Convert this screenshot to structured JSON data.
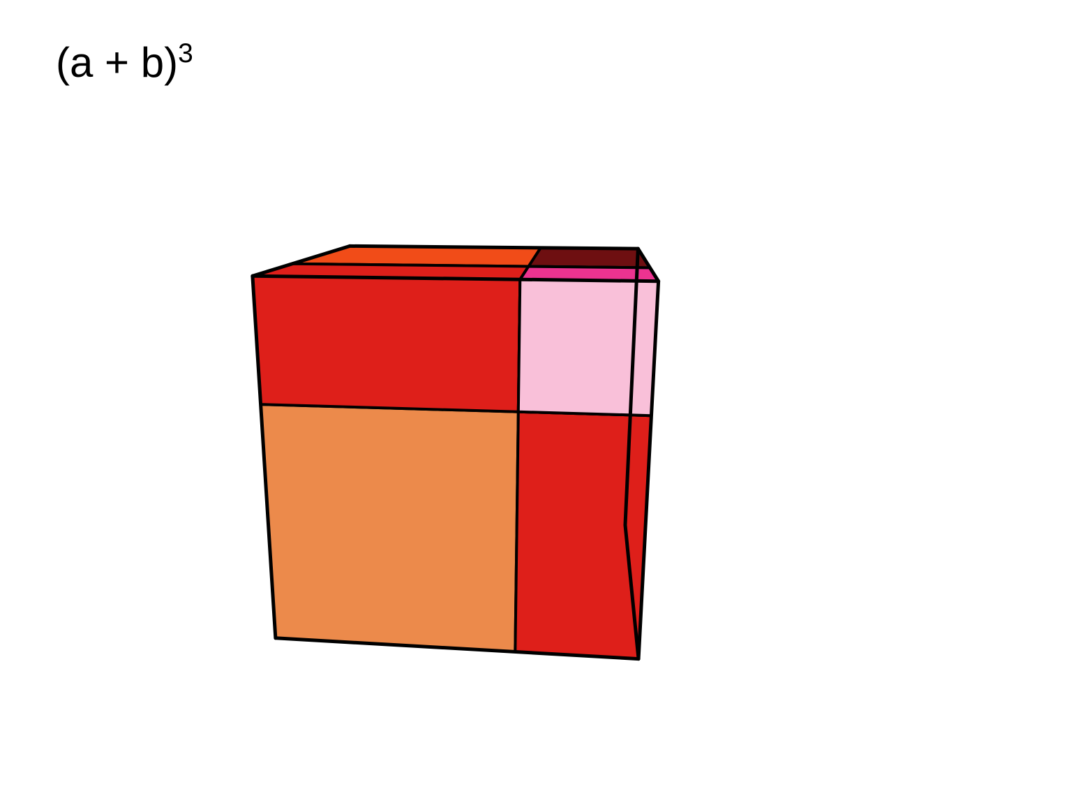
{
  "formula": {
    "base": "(a + b)",
    "exponent": "3"
  },
  "diagram": {
    "type": "3d-cube-decomposition",
    "description": "Geometric visualization of (a+b)^3 as a cube partitioned into 8 rectangular prisms",
    "dimensions": {
      "a_ratio": 0.67,
      "b_ratio": 0.33
    },
    "background_color": "#ffffff",
    "stroke_color": "#000000",
    "stroke_width": 4,
    "colors": {
      "a_cube_front": "#ec8a4b",
      "a2b_front_top": "#de1f1a",
      "ab2_front_right": "#de1f1a",
      "b_cube_front": "#f9c0d9",
      "b_cube_side": "#ec3390",
      "top_back_left": "#f14c18",
      "top_front_left": "#de1f1a",
      "top_back_right": "#6e0f11",
      "top_front_right": "#ec3390",
      "side_top_back": "#6e0f11",
      "side_top_front": "#de1f1a",
      "side_bottom_back": "#6e0f11",
      "side_bottom_front": "#f14c18"
    },
    "geometry_note": "Cube drawn in perspective projection. Front face split into a×a (bottom-left, orange), a×b (top-left, red), b×a (bottom-right, red), b×b (top-right, pink). Top and right side show corresponding depth slices."
  }
}
